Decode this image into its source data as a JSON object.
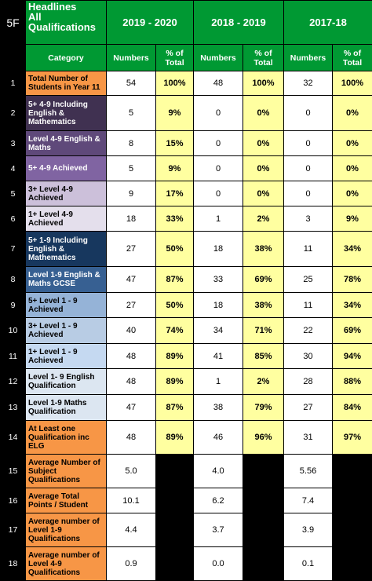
{
  "header": {
    "code": "5F",
    "title_line1": "Headlines",
    "title_line2": "All",
    "title_line3": "Qualifications",
    "years": [
      "2019 - 2020",
      "2018 - 2019",
      "2017-18"
    ]
  },
  "subheader": {
    "category": "Category",
    "numbers": "Numbers",
    "pct_line1": "% of",
    "pct_line2": "Total"
  },
  "colors": {
    "header_green": "#009933",
    "pct_yellow": "#ffffa0",
    "orange": "#f79646",
    "purple_dark": "#403151",
    "purple_mid": "#8064a2",
    "navy": "#17375e",
    "blue_mid": "#4f81bd"
  },
  "rows": [
    {
      "n": "1",
      "label": [
        "Total Number of",
        "Students in Year 11"
      ],
      "v": [
        "54",
        "100%",
        "48",
        "100%",
        "32",
        "100%"
      ]
    },
    {
      "n": "2",
      "label": [
        "5+ 4-9 Including",
        "English &",
        "Mathematics"
      ],
      "v": [
        "5",
        "9%",
        "0",
        "0%",
        "0",
        "0%"
      ]
    },
    {
      "n": "3",
      "label": [
        "Level 4-9  English &",
        "Maths"
      ],
      "v": [
        "8",
        "15%",
        "0",
        "0%",
        "0",
        "0%"
      ]
    },
    {
      "n": "4",
      "label": [
        "5+ 4-9 Achieved"
      ],
      "v": [
        "5",
        "9%",
        "0",
        "0%",
        "0",
        "0%"
      ]
    },
    {
      "n": "5",
      "label": [
        "3+ Level 4-9",
        "Achieved"
      ],
      "v": [
        "9",
        "17%",
        "0",
        "0%",
        "0",
        "0%"
      ]
    },
    {
      "n": "6",
      "label": [
        "1+ Level 4-9",
        "Achieved"
      ],
      "v": [
        "18",
        "33%",
        "1",
        "2%",
        "3",
        "9%"
      ]
    },
    {
      "n": "7",
      "label": [
        "5+ 1-9  Including",
        "English &",
        "Mathematics"
      ],
      "v": [
        "27",
        "50%",
        "18",
        "38%",
        "11",
        "34%"
      ]
    },
    {
      "n": "8",
      "label": [
        "Level 1-9 English &",
        "Maths GCSE"
      ],
      "v": [
        "47",
        "87%",
        "33",
        "69%",
        "25",
        "78%"
      ]
    },
    {
      "n": "9",
      "label": [
        "5+ Level 1 - 9",
        "Achieved"
      ],
      "v": [
        "27",
        "50%",
        "18",
        "38%",
        "11",
        "34%"
      ]
    },
    {
      "n": "10",
      "label": [
        "3+ Level 1 - 9",
        "Achieved"
      ],
      "v": [
        "40",
        "74%",
        "34",
        "71%",
        "22",
        "69%"
      ]
    },
    {
      "n": "11",
      "label": [
        "1+ Level 1 - 9",
        "Achieved"
      ],
      "v": [
        "48",
        "89%",
        "41",
        "85%",
        "30",
        "94%"
      ]
    },
    {
      "n": "12",
      "label": [
        "Level 1- 9 English",
        "Qualification"
      ],
      "v": [
        "48",
        "89%",
        "1",
        "2%",
        "28",
        "88%"
      ]
    },
    {
      "n": "13",
      "label": [
        "Level 1-9 Maths",
        "Qualification"
      ],
      "v": [
        "47",
        "87%",
        "38",
        "79%",
        "27",
        "84%"
      ]
    },
    {
      "n": "14",
      "label": [
        "At Least one",
        "Qualification inc",
        "ELG"
      ],
      "v": [
        "48",
        "89%",
        "46",
        "96%",
        "31",
        "97%"
      ]
    },
    {
      "n": "15",
      "label": [
        "Average Number of",
        "Subject",
        "Qualifications"
      ],
      "v": [
        "5.0",
        "",
        "4.0",
        "",
        "5.56",
        ""
      ]
    },
    {
      "n": "16",
      "label": [
        "Average Total",
        "Points / Student"
      ],
      "v": [
        "10.1",
        "",
        "6.2",
        "",
        "7.4",
        ""
      ]
    },
    {
      "n": "17",
      "label": [
        "Average number of",
        "Level 1-9",
        "Qualifications"
      ],
      "v": [
        "4.4",
        "",
        "3.7",
        "",
        "3.9",
        ""
      ]
    },
    {
      "n": "18",
      "label": [
        "Average number of",
        "Level 4-9",
        "Qualifications"
      ],
      "v": [
        "0.9",
        "",
        "0.0",
        "",
        "0.1",
        ""
      ]
    }
  ]
}
